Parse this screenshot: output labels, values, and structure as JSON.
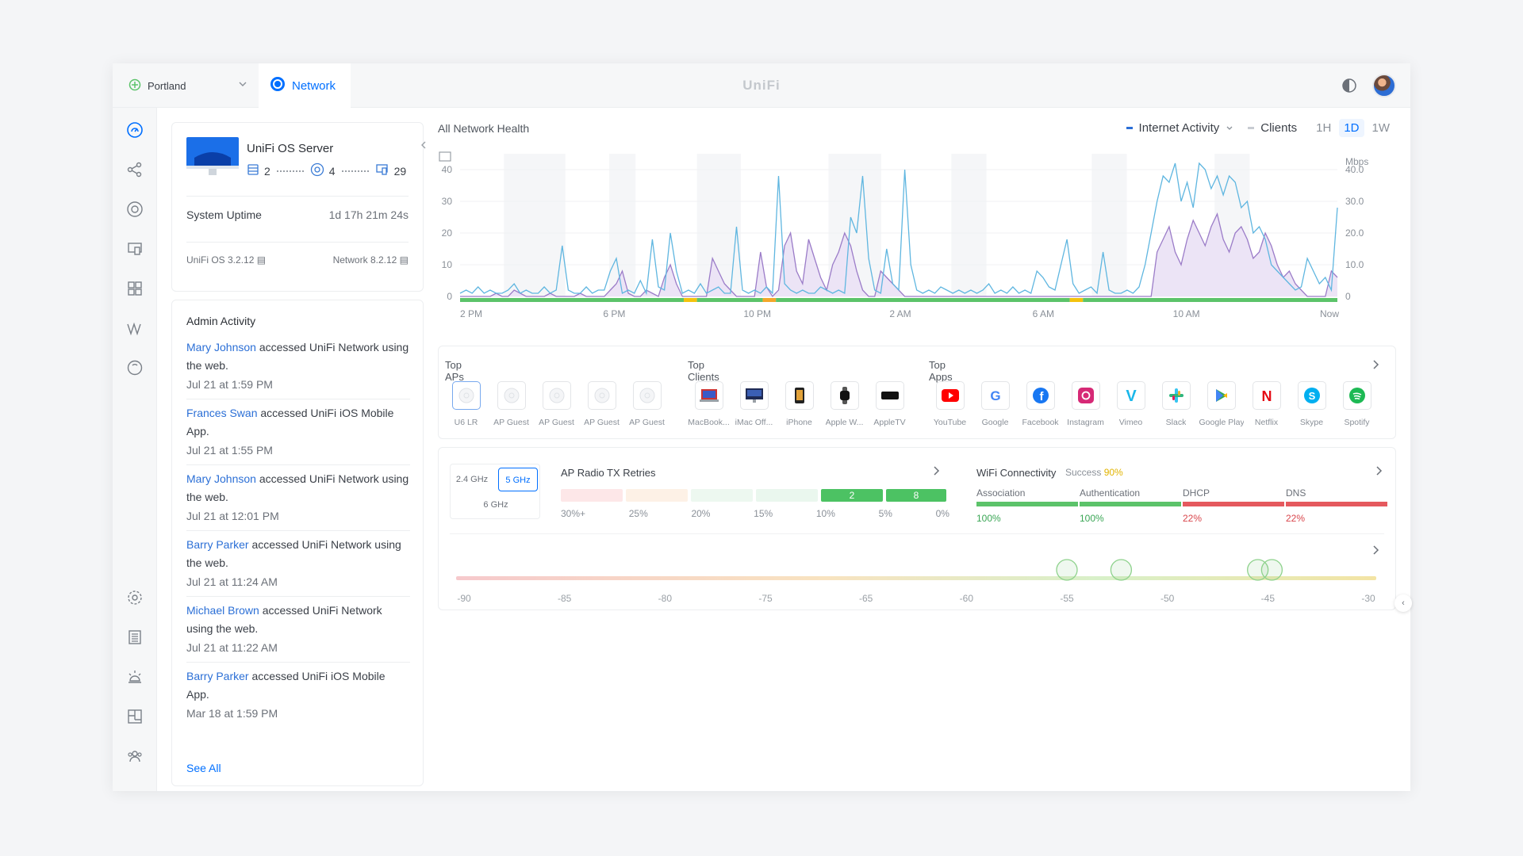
{
  "topbar": {
    "site": "Portland",
    "network_tab": "Network",
    "brand": "UniFi"
  },
  "server": {
    "name": "UniFi OS Server",
    "stat_storage": "2",
    "stat_aps": "4",
    "stat_clients": "29",
    "uptime_label": "System Uptime",
    "uptime_value": "1d 17h 21m 24s",
    "os_version": "UniFi OS 3.2.12",
    "network_version": "Network 8.2.12"
  },
  "admin": {
    "title": "Admin Activity",
    "items": [
      {
        "user": "Mary Johnson",
        "action": " accessed UniFi Network using the web.",
        "time": "Jul 21 at 1:59 PM"
      },
      {
        "user": "Frances Swan",
        "action": " accessed UniFi iOS Mobile App.",
        "time": "Jul 21 at 1:55 PM"
      },
      {
        "user": "Mary Johnson",
        "action": " accessed UniFi Network using the web.",
        "time": "Jul 21 at 12:01 PM"
      },
      {
        "user": "Barry Parker",
        "action": " accessed UniFi Network using the web.",
        "time": "Jul 21 at 11:24 AM"
      },
      {
        "user": "Michael Brown",
        "action": " accessed UniFi Network using the web.",
        "time": "Jul 21 at 11:22 AM"
      },
      {
        "user": "Barry Parker",
        "action": " accessed UniFi iOS Mobile App.",
        "time": "Mar 18 at 1:59 PM"
      }
    ],
    "see_all": "See All"
  },
  "health": {
    "title": "All Network Health",
    "legend_internet": "Internet Activity",
    "legend_clients": "Clients",
    "ranges": [
      "1H",
      "1D",
      "1W"
    ],
    "active_range": "1D",
    "colors": {
      "internet": "#5fb6e0",
      "clients": "#9b7cc8",
      "clients_fill": "#ece4f6"
    }
  },
  "chart_data": {
    "type": "line",
    "x_labels": [
      "2 PM",
      "6 PM",
      "10 PM",
      "2 AM",
      "6 AM",
      "10 AM",
      "Now"
    ],
    "left_axis": {
      "ticks": [
        "0",
        "10",
        "20",
        "30",
        "40"
      ],
      "ylim": [
        0,
        45
      ]
    },
    "right_axis": {
      "unit": "Mbps",
      "ticks": [
        "0",
        "10.0",
        "20.0",
        "30.0",
        "40.0"
      ],
      "ylim": [
        0,
        45
      ]
    },
    "series": [
      {
        "name": "Internet Activity",
        "values": [
          1,
          2,
          1,
          3,
          1,
          2,
          1,
          1,
          2,
          4,
          1,
          2,
          1,
          1,
          3,
          1,
          2,
          16,
          2,
          1,
          1,
          3,
          1,
          2,
          2,
          8,
          12,
          1,
          2,
          1,
          5,
          1,
          18,
          3,
          2,
          20,
          8,
          1,
          2,
          1,
          4,
          1,
          2,
          3,
          1,
          1,
          22,
          2,
          1,
          2,
          1,
          3,
          1,
          38,
          4,
          2,
          1,
          2,
          1,
          1,
          3,
          2,
          1,
          2,
          1,
          25,
          20,
          38,
          12,
          2,
          1,
          15,
          4,
          2,
          40,
          10,
          2,
          1,
          2,
          1,
          3,
          2,
          1,
          2,
          1,
          2,
          1,
          2,
          4,
          1,
          2,
          1,
          3,
          1,
          2,
          1,
          8,
          6,
          3,
          2,
          10,
          18,
          4,
          1,
          2,
          3,
          1,
          14,
          2,
          1,
          1,
          2,
          1,
          3,
          10,
          20,
          30,
          38,
          36,
          42,
          30,
          36,
          28,
          42,
          40,
          34,
          38,
          32,
          38,
          36,
          28,
          30,
          20,
          22,
          18,
          10,
          8,
          6,
          4,
          2,
          3,
          12,
          8,
          4,
          6,
          2,
          28
        ]
      },
      {
        "name": "Clients",
        "values": [
          0,
          0,
          0,
          0,
          0,
          0,
          1,
          0,
          0,
          2,
          1,
          0,
          0,
          0,
          0,
          1,
          0,
          0,
          0,
          0,
          1,
          0,
          0,
          0,
          0,
          2,
          4,
          8,
          1,
          0,
          0,
          2,
          1,
          0,
          6,
          10,
          4,
          0,
          0,
          0,
          0,
          0,
          12,
          8,
          4,
          2,
          0,
          0,
          0,
          0,
          14,
          3,
          0,
          2,
          16,
          20,
          8,
          4,
          18,
          12,
          6,
          2,
          10,
          14,
          20,
          16,
          8,
          2,
          0,
          0,
          8,
          6,
          4,
          2,
          0,
          0,
          0,
          0,
          0,
          0,
          0,
          0,
          0,
          0,
          0,
          0,
          0,
          0,
          0,
          0,
          0,
          0,
          0,
          0,
          0,
          0,
          0,
          0,
          0,
          0,
          0,
          0,
          0,
          0,
          0,
          0,
          0,
          0,
          0,
          0,
          0,
          0,
          0,
          0,
          0,
          0,
          14,
          18,
          22,
          14,
          10,
          18,
          24,
          20,
          16,
          22,
          26,
          18,
          14,
          20,
          22,
          18,
          12,
          14,
          20,
          16,
          10,
          6,
          8,
          4,
          2,
          0,
          0,
          0,
          0,
          8,
          6
        ]
      }
    ],
    "status_bar": [
      {
        "from": 0,
        "to": 0.255,
        "color": "#5cc36a"
      },
      {
        "from": 0.255,
        "to": 0.27,
        "color": "#f4c20d"
      },
      {
        "from": 0.27,
        "to": 0.345,
        "color": "#5cc36a"
      },
      {
        "from": 0.345,
        "to": 0.36,
        "color": "#f4a62a"
      },
      {
        "from": 0.36,
        "to": 0.695,
        "color": "#5cc36a"
      },
      {
        "from": 0.695,
        "to": 0.71,
        "color": "#f4c20d"
      },
      {
        "from": 0.71,
        "to": 1,
        "color": "#5cc36a"
      }
    ]
  },
  "tops": {
    "aps_title": "Top APs",
    "aps": [
      "U6 LR",
      "AP Guest",
      "AP Guest",
      "AP Guest",
      "AP Guest"
    ],
    "clients_title": "Top Clients",
    "clients": [
      "MacBook...",
      "iMac Off...",
      "iPhone",
      "Apple W...",
      "AppleTV"
    ],
    "apps_title": "Top Apps",
    "apps": [
      "YouTube",
      "Google",
      "Facebook",
      "Instagram",
      "Vimeo",
      "Slack",
      "Google Play",
      "Netflix",
      "Skype",
      "Spotify"
    ]
  },
  "radio": {
    "bands": [
      "2.4 GHz",
      "5 GHz",
      "6 GHz"
    ],
    "active_band": "5 GHz",
    "retries_title": "AP Radio TX Retries",
    "retry_labels": [
      "30%+",
      "25%",
      "20%",
      "15%",
      "10%",
      "5%",
      "0%"
    ],
    "retry_counts": [
      "2",
      "8"
    ]
  },
  "wifi": {
    "title": "WiFi Connectivity",
    "success_label": "Success",
    "success_value": "90%",
    "cols": [
      {
        "label": "Association",
        "value": "100%",
        "color": "#5cc36a"
      },
      {
        "label": "Authentication",
        "value": "100%",
        "color": "#5cc36a"
      },
      {
        "label": "DHCP",
        "value": "22%",
        "color": "#e5595e"
      },
      {
        "label": "DNS",
        "value": "22%",
        "color": "#e5595e"
      }
    ]
  },
  "signal": {
    "ticks": [
      "-90",
      "-85",
      "-80",
      "-75",
      "-65",
      "-60",
      "-55",
      "-50",
      "-45",
      "-30"
    ],
    "markers_dbm": [
      -55,
      -52.3,
      -45.5,
      -44.4
    ]
  }
}
